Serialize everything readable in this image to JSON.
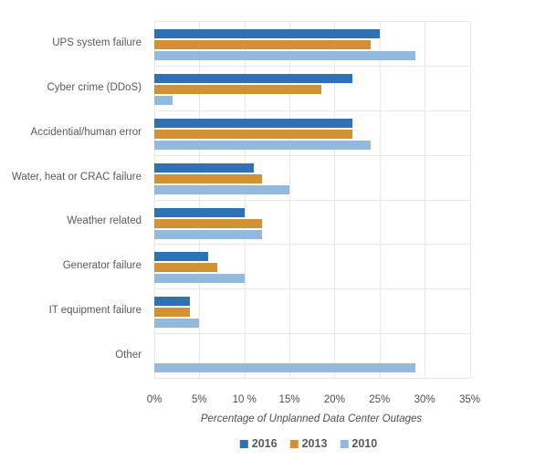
{
  "chart_data": {
    "type": "bar",
    "orientation": "horizontal",
    "title": "",
    "xlabel": "Percentage of Unplanned Data Center Outages",
    "ylabel": "",
    "categories": [
      "UPS system failure",
      "Cyber crime (DDoS)",
      "Accidential/human error",
      "Water, heat or CRAC failure",
      "Weather related",
      "Generator failure",
      "IT equipment failure",
      "Other"
    ],
    "series": [
      {
        "name": "2016",
        "color": "#2e72b5",
        "values": [
          25,
          22,
          22,
          11,
          10,
          6,
          4,
          0
        ]
      },
      {
        "name": "2013",
        "color": "#d29132",
        "values": [
          24,
          18.5,
          22,
          12,
          12,
          7,
          4,
          0
        ]
      },
      {
        "name": "2010",
        "color": "#94b9df",
        "values": [
          29,
          2,
          24,
          15,
          12,
          10,
          5,
          29
        ]
      }
    ],
    "xlim": [
      0,
      35
    ],
    "x_tick_step": 5,
    "x_tick_labels": [
      "0%",
      "5%",
      "10 %",
      "15%",
      "20%",
      "25%",
      "30%",
      "35%"
    ],
    "grid": "on",
    "legend_position": "bottom",
    "colors": {
      "background": "#ffffff",
      "gridline": "#e8e8e8",
      "category_text": "#595959",
      "tick_text": "#4d4d4d"
    }
  }
}
